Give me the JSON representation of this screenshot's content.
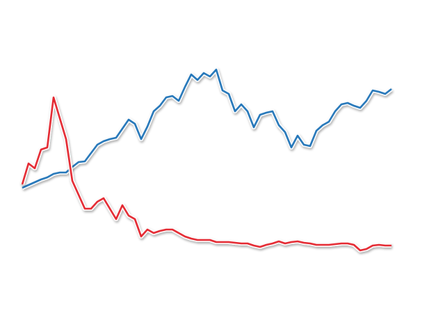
{
  "chart_data": {
    "type": "line",
    "x": [
      0,
      1,
      2,
      3,
      4,
      5,
      6,
      7,
      8,
      9,
      10,
      11,
      12,
      13,
      14,
      15,
      16,
      17,
      18,
      19,
      20,
      21,
      22,
      23,
      24,
      25,
      26,
      27,
      28,
      29,
      30,
      31,
      32,
      33,
      34,
      35,
      36,
      37,
      38,
      39,
      40,
      41,
      42,
      43,
      44,
      45,
      46,
      47,
      48,
      49,
      50,
      51,
      52,
      53,
      54,
      55,
      56,
      57,
      58,
      59
    ],
    "xlim": [
      0,
      59
    ],
    "ylim": [
      0,
      450
    ],
    "series": [
      {
        "color": "#1f73b7",
        "values": [
          180,
          184,
          188,
          192,
          195,
          200,
          202,
          202,
          210,
          217,
          218,
          230,
          242,
          247,
          250,
          252,
          265,
          278,
          272,
          250,
          268,
          290,
          298,
          310,
          312,
          305,
          325,
          343,
          335,
          345,
          340,
          350,
          320,
          315,
          290,
          300,
          290,
          267,
          285,
          288,
          290,
          270,
          260,
          238,
          255,
          242,
          240,
          262,
          270,
          275,
          290,
          300,
          302,
          298,
          295,
          305,
          320,
          318,
          315,
          322
        ]
      },
      {
        "color": "#e3232c",
        "values": [
          185,
          215,
          208,
          235,
          238,
          310,
          280,
          250,
          190,
          170,
          150,
          150,
          160,
          165,
          150,
          135,
          155,
          140,
          135,
          110,
          120,
          115,
          118,
          120,
          120,
          115,
          110,
          107,
          105,
          105,
          105,
          102,
          102,
          102,
          101,
          100,
          100,
          97,
          95,
          98,
          100,
          103,
          100,
          102,
          103,
          101,
          100,
          98,
          98,
          98,
          99,
          100,
          100,
          98,
          90,
          92,
          97,
          98,
          97,
          97
        ]
      }
    ]
  }
}
